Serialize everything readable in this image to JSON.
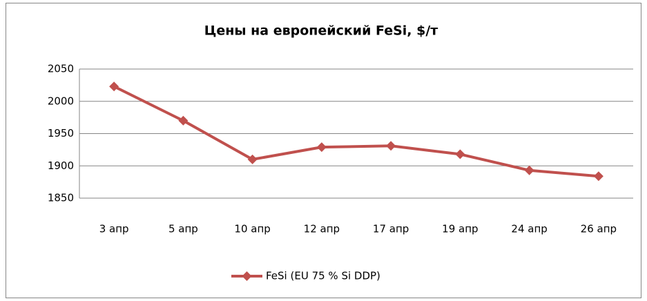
{
  "chart_data": {
    "type": "line",
    "title": "Цены на европейский FeSi, $/т",
    "categories": [
      "3 апр",
      "5 апр",
      "10 апр",
      "12 апр",
      "17 апр",
      "19 апр",
      "24 апр",
      "26 апр"
    ],
    "series": [
      {
        "name": "FeSi (EU 75 % Si DDP)",
        "color": "#c0504d",
        "values": [
          2023,
          1970,
          1910,
          1929,
          1931,
          1918,
          1893,
          1884
        ]
      }
    ],
    "ylim": [
      1850,
      2050
    ],
    "yticks": [
      1850,
      1900,
      1950,
      2000,
      2050
    ],
    "grid": true,
    "legend": "bottom"
  }
}
